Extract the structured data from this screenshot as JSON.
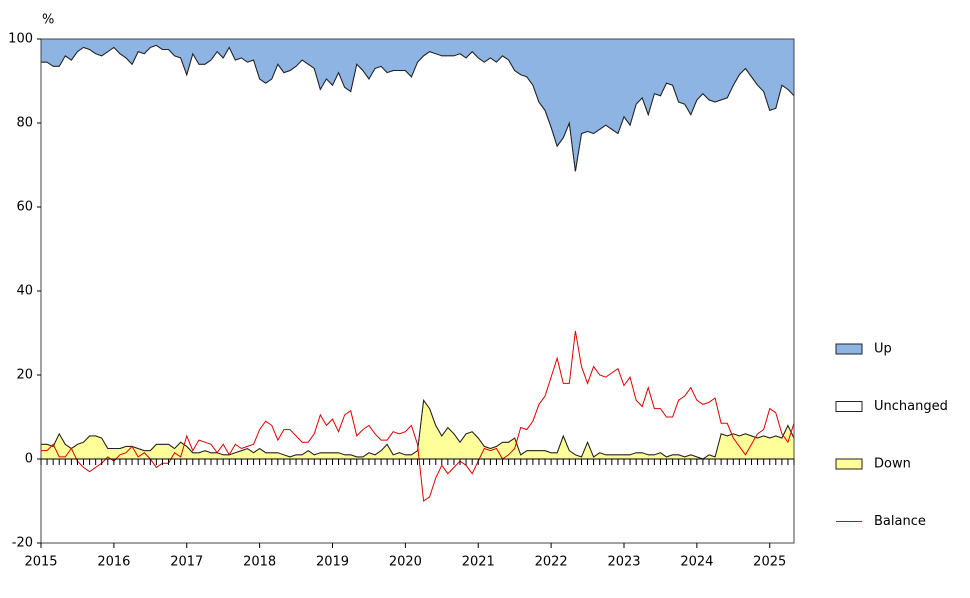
{
  "chart_data": {
    "type": "area",
    "y_unit": "%",
    "xlim": [
      2015,
      2025.333
    ],
    "xticks": [
      2015,
      2016,
      2017,
      2018,
      2019,
      2020,
      2021,
      2022,
      2023,
      2024,
      2025
    ],
    "ylim": [
      -20,
      100
    ],
    "yticks": [
      -20,
      0,
      20,
      40,
      60,
      80,
      100
    ],
    "grid": false,
    "legend": "right",
    "x": [
      2015,
      2015.083,
      2015.167,
      2015.25,
      2015.333,
      2015.417,
      2015.5,
      2015.583,
      2015.667,
      2015.75,
      2015.833,
      2015.917,
      2016,
      2016.083,
      2016.167,
      2016.25,
      2016.333,
      2016.417,
      2016.5,
      2016.583,
      2016.667,
      2016.75,
      2016.833,
      2016.917,
      2017,
      2017.083,
      2017.167,
      2017.25,
      2017.333,
      2017.417,
      2017.5,
      2017.583,
      2017.667,
      2017.75,
      2017.833,
      2017.917,
      2018,
      2018.083,
      2018.167,
      2018.25,
      2018.333,
      2018.417,
      2018.5,
      2018.583,
      2018.667,
      2018.75,
      2018.833,
      2018.917,
      2019,
      2019.083,
      2019.167,
      2019.25,
      2019.333,
      2019.417,
      2019.5,
      2019.583,
      2019.667,
      2019.75,
      2019.833,
      2019.917,
      2020,
      2020.083,
      2020.167,
      2020.25,
      2020.333,
      2020.417,
      2020.5,
      2020.583,
      2020.667,
      2020.75,
      2020.833,
      2020.917,
      2021,
      2021.083,
      2021.167,
      2021.25,
      2021.333,
      2021.417,
      2021.5,
      2021.583,
      2021.667,
      2021.75,
      2021.833,
      2021.917,
      2022,
      2022.083,
      2022.167,
      2022.25,
      2022.333,
      2022.417,
      2022.5,
      2022.583,
      2022.667,
      2022.75,
      2022.833,
      2022.917,
      2023,
      2023.083,
      2023.167,
      2023.25,
      2023.333,
      2023.417,
      2023.5,
      2023.583,
      2023.667,
      2023.75,
      2023.833,
      2023.917,
      2024,
      2024.083,
      2024.167,
      2024.25,
      2024.333,
      2024.417,
      2024.5,
      2024.583,
      2024.667,
      2024.75,
      2024.833,
      2024.917,
      2025,
      2025.083,
      2025.167,
      2025.25,
      2025.333
    ],
    "series": [
      {
        "name": "Up",
        "type": "area",
        "color": "#8eb4e3",
        "values": [
          5.5,
          5.5,
          6.5,
          6.5,
          4,
          5,
          3,
          2,
          2.5,
          3.5,
          4,
          3,
          2,
          3.5,
          4.5,
          6,
          3,
          3.5,
          2,
          1.5,
          2.5,
          2.5,
          4,
          4.5,
          8.5,
          3.5,
          6,
          6,
          5,
          3,
          4.5,
          2,
          5,
          4.5,
          5.5,
          5,
          9.5,
          10.5,
          9.5,
          6,
          8,
          7.5,
          6.5,
          5,
          6,
          7,
          12,
          9.5,
          11,
          8,
          11.5,
          12.5,
          6,
          7.5,
          9.5,
          7,
          6.5,
          8,
          7.5,
          7.5,
          7.5,
          9,
          5.5,
          4,
          3,
          3.5,
          4,
          4,
          4,
          3.5,
          4.5,
          3,
          4.5,
          5.5,
          4.5,
          5.5,
          4,
          5,
          7.5,
          8.5,
          9,
          11,
          15,
          17,
          21,
          25.5,
          23.5,
          20,
          31.5,
          22.5,
          22,
          22.5,
          21.5,
          20.5,
          21.5,
          22.5,
          18.5,
          20.5,
          15.5,
          14,
          18,
          13,
          13.5,
          10.5,
          11,
          15,
          15.5,
          18,
          14.5,
          13,
          14.5,
          15,
          14.5,
          14,
          11,
          8.5,
          7,
          9,
          11,
          12.5,
          17,
          16.5,
          11,
          12,
          13.5
        ]
      },
      {
        "name": "Unchanged",
        "type": "area",
        "color": "#ffffff",
        "values": [
          91,
          91,
          90.5,
          87.5,
          92.5,
          92.5,
          93.5,
          94,
          92,
          91,
          91,
          94.5,
          95.5,
          94,
          92.5,
          91,
          94.5,
          94.5,
          96,
          95,
          94,
          94,
          93.5,
          91.5,
          88.5,
          95,
          92.5,
          92,
          93.5,
          95.5,
          94.5,
          97,
          93.5,
          93.5,
          92,
          93.5,
          88,
          88,
          89,
          92.5,
          91,
          92,
          92.5,
          94,
          92,
          92,
          86.5,
          89,
          87.5,
          90.5,
          87.5,
          86.5,
          93.5,
          92,
          89,
          92,
          91.5,
          88.5,
          91.5,
          91,
          91.5,
          90,
          92.5,
          82,
          85,
          88.5,
          90.5,
          88.5,
          90,
          92.5,
          89.5,
          90.5,
          90.5,
          91.5,
          93,
          91.5,
          92,
          91,
          87.5,
          90.5,
          89,
          87,
          83,
          81,
          77.5,
          73,
          71,
          78,
          67.5,
          77,
          74,
          77,
          77,
          78.5,
          77.5,
          76.5,
          80.5,
          78.5,
          83,
          84.5,
          81,
          86,
          85,
          89,
          88,
          84,
          84,
          81,
          85,
          87,
          84.5,
          84.5,
          79.5,
          80.5,
          83,
          86,
          87,
          85.5,
          84,
          82,
          78,
          78,
          84,
          80,
          81.5
        ]
      },
      {
        "name": "Down",
        "type": "area",
        "color": "#ffff99",
        "values": [
          3.5,
          3.5,
          3,
          6,
          3.5,
          2.5,
          3.5,
          4,
          5.5,
          5.5,
          5,
          2.5,
          2.5,
          2.5,
          3,
          3,
          2.5,
          2,
          2,
          3.5,
          3.5,
          3.5,
          2.5,
          4,
          3,
          1.5,
          1.5,
          2,
          1.5,
          1.5,
          1,
          1,
          1.5,
          2,
          2.5,
          1.5,
          2.5,
          1.5,
          1.5,
          1.5,
          1,
          0.5,
          1,
          1,
          2,
          1,
          1.5,
          1.5,
          1.5,
          1.5,
          1,
          1,
          0.5,
          0.5,
          1.5,
          1,
          2,
          3.5,
          1,
          1.5,
          1,
          1,
          2,
          14,
          12,
          8,
          5.5,
          7.5,
          6,
          4,
          6,
          6.5,
          5,
          3,
          2.5,
          3,
          4,
          4,
          5,
          1,
          2,
          2,
          2,
          2,
          1.5,
          1.5,
          5.5,
          2,
          1,
          0.5,
          4,
          0.5,
          1.5,
          1,
          1,
          1,
          1,
          1,
          1.5,
          1.5,
          1,
          1,
          1.5,
          0.5,
          1,
          1,
          0.5,
          1,
          0.5,
          0,
          1,
          0.5,
          6,
          5.5,
          6,
          5.5,
          6,
          5.5,
          5,
          5.5,
          5,
          5.5,
          5,
          8,
          5
        ]
      },
      {
        "name": "Balance",
        "type": "line",
        "color": "#e00000",
        "values": [
          2,
          2,
          3.5,
          0.5,
          0.5,
          2.5,
          -0.5,
          -2,
          -3,
          -2,
          -1,
          0.5,
          -0.5,
          1,
          1.5,
          3,
          0.5,
          1.5,
          0,
          -2,
          -1,
          -1,
          1.5,
          0.5,
          5.5,
          2,
          4.5,
          4,
          3.5,
          1.5,
          3.5,
          1,
          3.5,
          2.5,
          3,
          3.5,
          7,
          9,
          8,
          4.5,
          7,
          7,
          5.5,
          4,
          4,
          6,
          10.5,
          8,
          9.5,
          6.5,
          10.5,
          11.5,
          5.5,
          7,
          8,
          6,
          4.5,
          4.5,
          6.5,
          6,
          6.5,
          8,
          3.5,
          -10,
          -9,
          -4.5,
          -1.5,
          -3.5,
          -2,
          -0.5,
          -1.5,
          -3.5,
          -0.5,
          2.5,
          2,
          2.5,
          0,
          1,
          2.5,
          7.5,
          7,
          9,
          13,
          15,
          19.5,
          24,
          18,
          18,
          30.5,
          22,
          18,
          22,
          20,
          19.5,
          20.5,
          21.5,
          17.5,
          19.5,
          14,
          12.5,
          17,
          12,
          12,
          10,
          10,
          14,
          15,
          17,
          14,
          13,
          13.5,
          14.5,
          8.5,
          8.5,
          5,
          3,
          1,
          3.5,
          6,
          7,
          12,
          11,
          6,
          4,
          8.5
        ]
      }
    ]
  }
}
